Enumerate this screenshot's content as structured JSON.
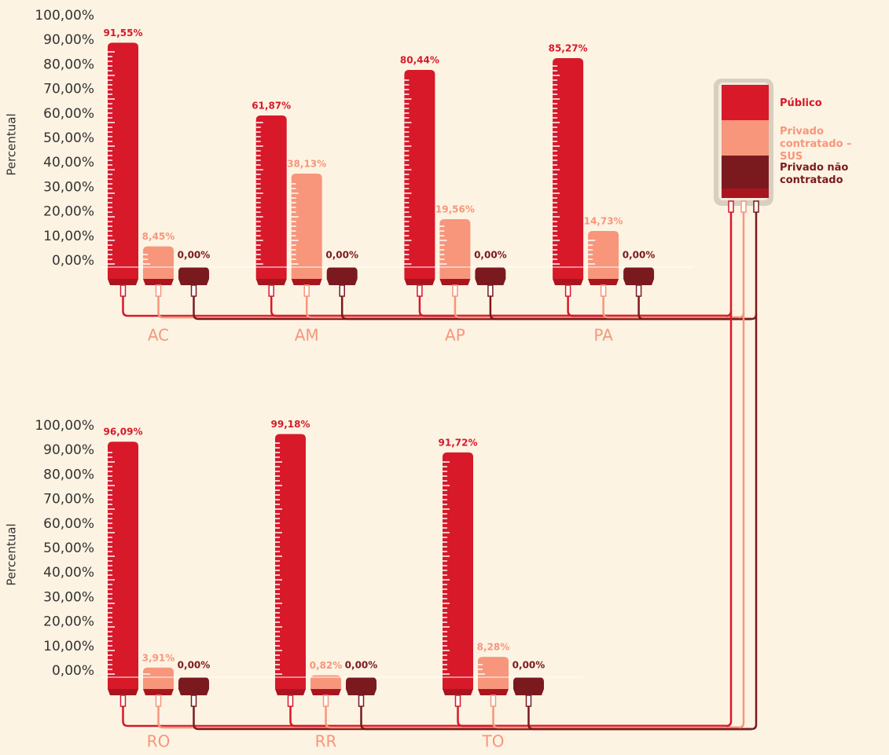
{
  "chart_data": [
    {
      "type": "bar",
      "ylabel": "Percentual",
      "categories": [
        "AC",
        "AM",
        "AP",
        "PA"
      ],
      "series": [
        {
          "name": "Público",
          "color": "#d7192a",
          "values": [
            91.55,
            61.87,
            80.44,
            85.27
          ],
          "value_labels": [
            "91,55%",
            "61,87%",
            "80,44%",
            "85,27%"
          ]
        },
        {
          "name": "Privado contratado – SUS",
          "color": "#f7967b",
          "values": [
            8.45,
            38.13,
            19.56,
            14.73
          ],
          "value_labels": [
            "8,45%",
            "38,13%",
            "19,56%",
            "14,73%"
          ]
        },
        {
          "name": "Privado não contratado",
          "color": "#7b1a1e",
          "values": [
            0,
            0,
            0,
            0
          ],
          "value_labels": [
            "0,00%",
            "0,00%",
            "0,00%",
            "0,00%"
          ]
        }
      ],
      "ylim": [
        0,
        100
      ],
      "yticks": [
        {
          "value": 0,
          "label": "0,00%"
        },
        {
          "value": 10,
          "label": "10,00%"
        },
        {
          "value": 20,
          "label": "20,00%"
        },
        {
          "value": 30,
          "label": "30,00%"
        },
        {
          "value": 40,
          "label": "40,00%"
        },
        {
          "value": 50,
          "label": "50,00%"
        },
        {
          "value": 60,
          "label": "60,00%"
        },
        {
          "value": 70,
          "label": "70,00%"
        },
        {
          "value": 80,
          "label": "80,00%"
        },
        {
          "value": 90,
          "label": "90,00%"
        },
        {
          "value": 100,
          "label": "100,00%"
        }
      ]
    },
    {
      "type": "bar",
      "ylabel": "Percentual",
      "categories": [
        "RO",
        "RR",
        "TO"
      ],
      "series": [
        {
          "color": "#d7192a",
          "values": [
            96.09,
            99.18,
            91.72
          ],
          "value_labels": [
            "96,09%",
            "99,18%",
            "91,72%"
          ]
        },
        {
          "color": "#f7967b",
          "values": [
            3.91,
            0.82,
            8.28
          ],
          "value_labels": [
            "3,91%",
            "0,82%",
            "8,28%"
          ]
        },
        {
          "color": "#7b1a1e",
          "values": [
            0,
            0,
            0
          ],
          "value_labels": [
            "0,00%",
            "0,00%",
            "0,00%"
          ]
        }
      ],
      "ylim": [
        0,
        100
      ],
      "yticks": [
        {
          "value": 0,
          "label": "0,00%"
        },
        {
          "value": 10,
          "label": "10,00%"
        },
        {
          "value": 20,
          "label": "20,00%"
        },
        {
          "value": 30,
          "label": "30,00%"
        },
        {
          "value": 40,
          "label": "40,00%"
        },
        {
          "value": 50,
          "label": "50,00%"
        },
        {
          "value": 60,
          "label": "60,00%"
        },
        {
          "value": 70,
          "label": "70,00%"
        },
        {
          "value": 80,
          "label": "80,00%"
        },
        {
          "value": 90,
          "label": "90,00%"
        },
        {
          "value": 100,
          "label": "100,00%"
        }
      ]
    }
  ]
}
